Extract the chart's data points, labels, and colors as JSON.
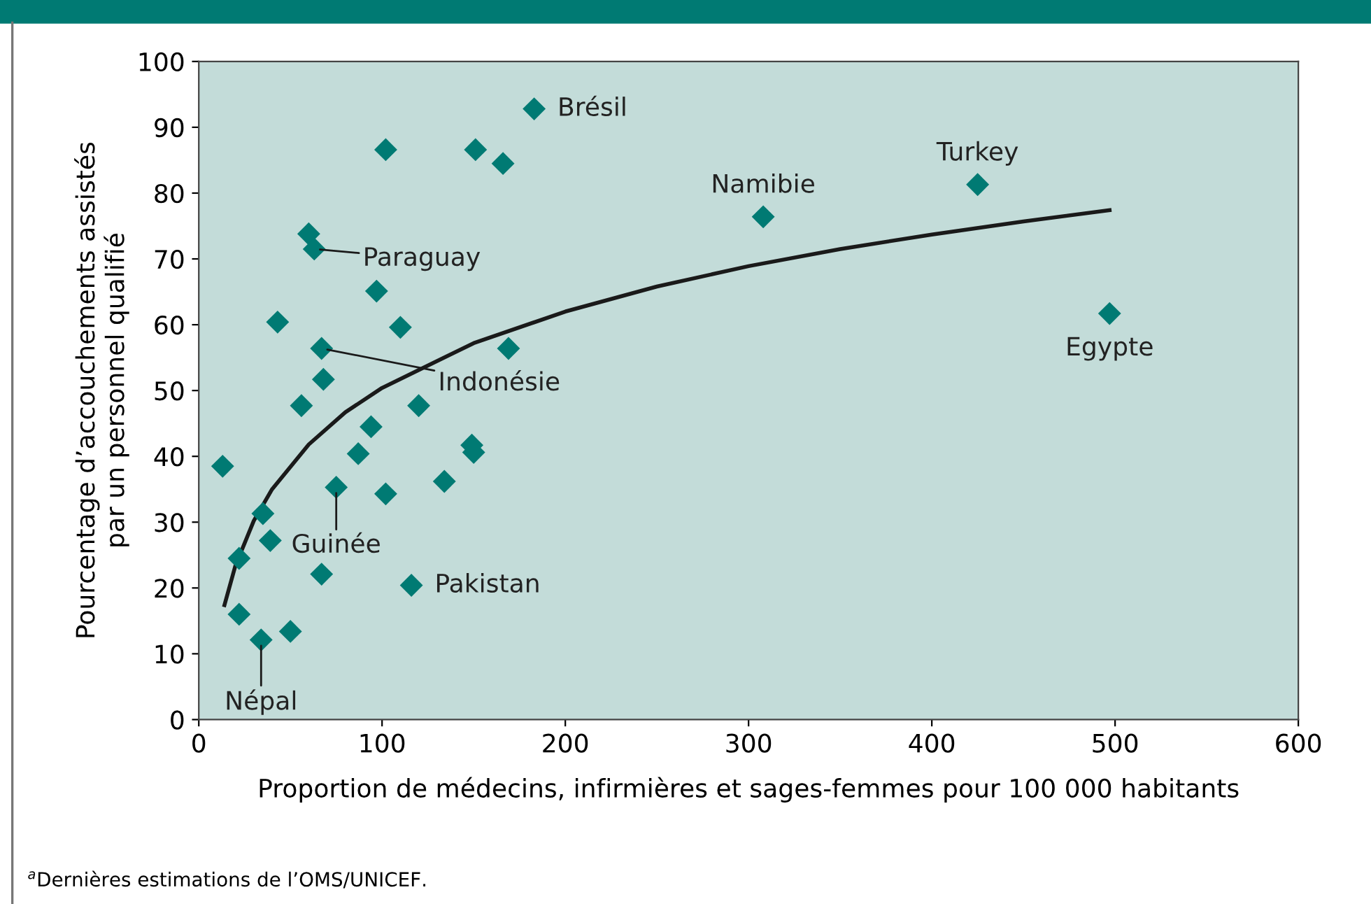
{
  "chart_data": {
    "type": "scatter",
    "xlabel": "Proportion de médecins, infirmières et sages-femmes pour 100 000 habitants",
    "ylabel": "Pourcentage d’accouchements assistés\npar un personnel qualifié",
    "xlim": [
      0,
      600
    ],
    "xticks": [
      0,
      100,
      200,
      300,
      400,
      500,
      600
    ],
    "ylim": [
      0,
      100
    ],
    "yticks": [
      0,
      10,
      20,
      30,
      40,
      50,
      60,
      70,
      80,
      90,
      100
    ],
    "grid": false,
    "legend": false,
    "series": [
      {
        "marker": "diamond",
        "color": "#007a73",
        "x": [
          183,
          102,
          151,
          166,
          60,
          63,
          97,
          43,
          110,
          67,
          169,
          68,
          56,
          120,
          94,
          87,
          149,
          150,
          13,
          75,
          102,
          134,
          35,
          39,
          22,
          67,
          116,
          22,
          34,
          50,
          308,
          425,
          497
        ],
        "values": [
          92.8,
          86.6,
          86.6,
          84.5,
          73.8,
          71.5,
          65.1,
          60.4,
          59.6,
          56.4,
          56.4,
          51.7,
          47.7,
          47.7,
          44.5,
          40.4,
          41.7,
          40.6,
          38.5,
          35.3,
          34.3,
          36.2,
          31.3,
          27.2,
          24.5,
          22.1,
          20.4,
          16.0,
          12.1,
          13.4,
          76.4,
          81.3,
          61.7
        ]
      },
      {
        "type": "line",
        "marker": "none",
        "color": "#1a1a1a",
        "x": [
          14,
          20,
          30,
          40,
          60,
          80,
          100,
          150,
          200,
          250,
          300,
          350,
          400,
          450,
          497
        ],
        "values": [
          17.4,
          23.4,
          30.2,
          35.0,
          41.8,
          46.7,
          50.4,
          57.2,
          62.0,
          65.8,
          68.9,
          71.5,
          73.7,
          75.7,
          77.4
        ]
      }
    ],
    "annotations": [
      {
        "text": "Brésil",
        "x": 183,
        "y": 92.8
      },
      {
        "text": "Paraguay",
        "x": 63,
        "y": 71.5
      },
      {
        "text": "Indonésie",
        "x": 67,
        "y": 56.4
      },
      {
        "text": "Guinée",
        "x": 75,
        "y": 35.3
      },
      {
        "text": "Pakistan",
        "x": 116,
        "y": 20.4
      },
      {
        "text": "Népal",
        "x": 34,
        "y": 12.1
      },
      {
        "text": "Namibie",
        "x": 308,
        "y": 76.4
      },
      {
        "text": "Turkey",
        "x": 425,
        "y": 81.3
      },
      {
        "text": "Egypte",
        "x": 497,
        "y": 61.7
      },
      "$^{a}$Dernières estimations de l’OMS/UNICEF."
    ]
  }
}
